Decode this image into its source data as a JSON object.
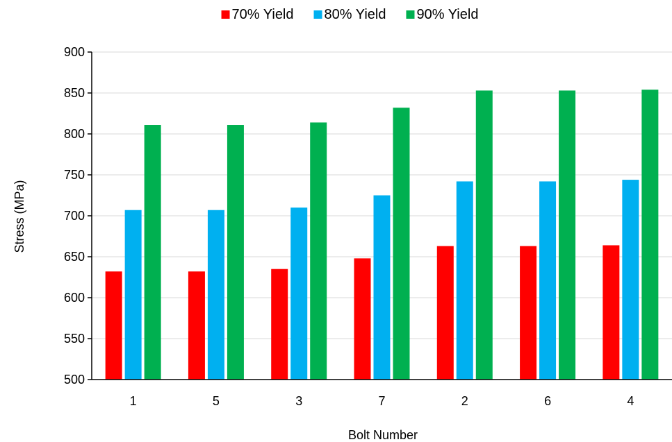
{
  "chart_data": {
    "type": "bar",
    "title": "",
    "xlabel": "Bolt Number",
    "ylabel": "Stress (MPa)",
    "categories": [
      "1",
      "5",
      "3",
      "7",
      "2",
      "6",
      "4"
    ],
    "ylim": [
      500,
      900
    ],
    "yticks": [
      500,
      550,
      600,
      650,
      700,
      750,
      800,
      850,
      900
    ],
    "grid": true,
    "legend_position": "top",
    "series": [
      {
        "name": "70% Yield",
        "color": "#ff0000",
        "values": [
          632,
          632,
          635,
          648,
          663,
          663,
          664
        ]
      },
      {
        "name": "80% Yield",
        "color": "#00b0f0",
        "values": [
          707,
          707,
          710,
          725,
          742,
          742,
          744
        ]
      },
      {
        "name": "90% Yield",
        "color": "#00b050",
        "values": [
          811,
          811,
          814,
          832,
          853,
          853,
          854
        ]
      }
    ]
  }
}
